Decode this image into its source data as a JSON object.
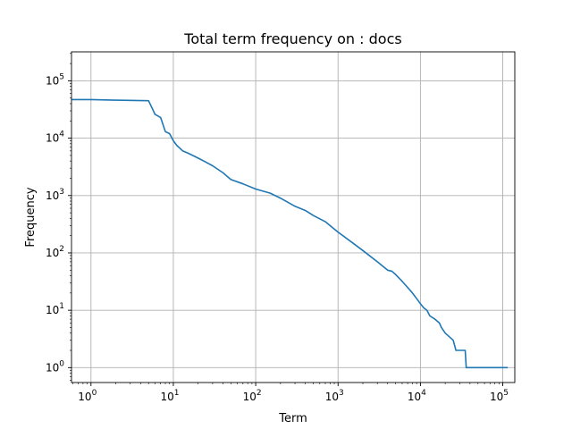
{
  "chart_data": {
    "type": "line",
    "title": "Total term frequency on : docs",
    "xlabel": "Term",
    "ylabel": "Frequency",
    "xscale": "log",
    "yscale": "log",
    "grid": true,
    "xlim": [
      0.58,
      140000
    ],
    "ylim": [
      0.55,
      320000
    ],
    "x_ticks": [
      {
        "value": 1,
        "base": "10",
        "exp": "0"
      },
      {
        "value": 10,
        "base": "10",
        "exp": "1"
      },
      {
        "value": 100,
        "base": "10",
        "exp": "2"
      },
      {
        "value": 1000,
        "base": "10",
        "exp": "3"
      },
      {
        "value": 10000,
        "base": "10",
        "exp": "4"
      },
      {
        "value": 100000,
        "base": "10",
        "exp": "5"
      }
    ],
    "y_ticks": [
      {
        "value": 1,
        "base": "10",
        "exp": "0"
      },
      {
        "value": 10,
        "base": "10",
        "exp": "1"
      },
      {
        "value": 100,
        "base": "10",
        "exp": "2"
      },
      {
        "value": 1000,
        "base": "10",
        "exp": "3"
      },
      {
        "value": 10000,
        "base": "10",
        "exp": "4"
      },
      {
        "value": 100000,
        "base": "10",
        "exp": "5"
      }
    ],
    "series": [
      {
        "color": "#1f77b4",
        "points": [
          [
            0.58,
            47000
          ],
          [
            1,
            47000
          ],
          [
            2,
            46000
          ],
          [
            5,
            45000
          ],
          [
            6,
            26000
          ],
          [
            7,
            23000
          ],
          [
            8,
            13000
          ],
          [
            9,
            12000
          ],
          [
            10,
            9000
          ],
          [
            11,
            7500
          ],
          [
            13,
            6000
          ],
          [
            15,
            5500
          ],
          [
            20,
            4500
          ],
          [
            25,
            3800
          ],
          [
            30,
            3300
          ],
          [
            40,
            2500
          ],
          [
            50,
            1900
          ],
          [
            70,
            1600
          ],
          [
            100,
            1300
          ],
          [
            150,
            1100
          ],
          [
            200,
            900
          ],
          [
            300,
            650
          ],
          [
            400,
            550
          ],
          [
            500,
            450
          ],
          [
            700,
            350
          ],
          [
            1000,
            230
          ],
          [
            1500,
            150
          ],
          [
            2000,
            110
          ],
          [
            3000,
            70
          ],
          [
            4000,
            50
          ],
          [
            4500,
            48
          ],
          [
            5000,
            42
          ],
          [
            6000,
            32
          ],
          [
            7000,
            25
          ],
          [
            8000,
            20
          ],
          [
            9000,
            16
          ],
          [
            10000,
            13
          ],
          [
            11000,
            11
          ],
          [
            12000,
            10
          ],
          [
            13000,
            8
          ],
          [
            15000,
            7
          ],
          [
            17000,
            6
          ],
          [
            18000,
            5
          ],
          [
            20000,
            4
          ],
          [
            25000,
            3
          ],
          [
            27000,
            2
          ],
          [
            35000,
            2
          ],
          [
            36000,
            1
          ],
          [
            115000,
            1
          ]
        ]
      }
    ]
  }
}
